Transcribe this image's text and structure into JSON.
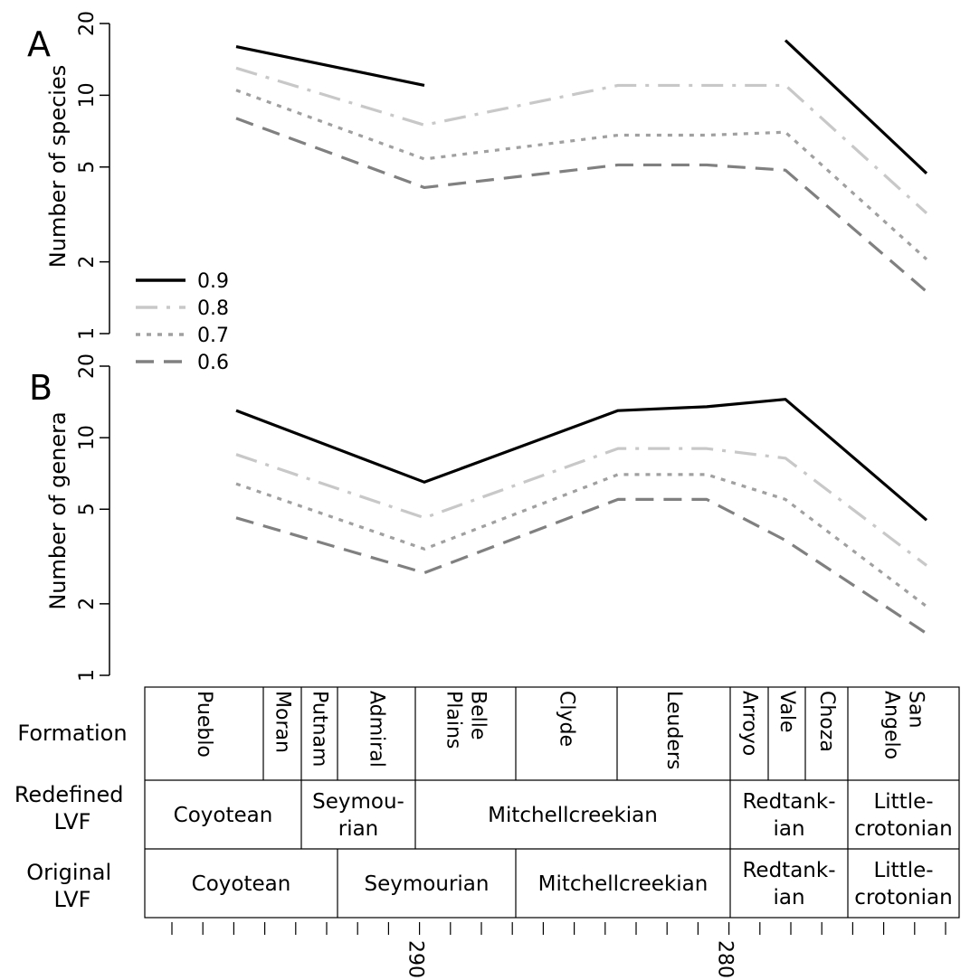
{
  "chart_data": [
    {
      "type": "line",
      "panel_label": "A",
      "ylabel": "Number of species",
      "yscale": "log",
      "ylim": [
        1,
        20
      ],
      "yticks": [
        1,
        2,
        5,
        10,
        20
      ],
      "x_stage": [
        "Coyotean",
        "Seymourian",
        "Mitchellcreekian",
        "Mitchellcreekian",
        "Redtankian",
        "Littlecrotonian"
      ],
      "series": [
        {
          "name": "0.9",
          "color": "#000000",
          "dash": "solid",
          "values": [
            16,
            11,
            null,
            null,
            17,
            4.7
          ]
        },
        {
          "name": "0.8",
          "color": "#c8c8c8",
          "dash": "dashdot",
          "values": [
            13,
            7.5,
            11,
            11,
            11,
            3.2
          ]
        },
        {
          "name": "0.7",
          "color": "#a0a0a0",
          "dash": "dotted",
          "values": [
            10.5,
            5.4,
            6.8,
            6.8,
            7,
            2.05
          ]
        },
        {
          "name": "0.6",
          "color": "#808080",
          "dash": "dashed",
          "values": [
            8,
            4.1,
            5.1,
            5.1,
            4.85,
            1.5
          ]
        }
      ]
    },
    {
      "type": "line",
      "panel_label": "B",
      "ylabel": "Number of genera",
      "yscale": "log",
      "ylim": [
        1,
        20
      ],
      "yticks": [
        1,
        2,
        5,
        10,
        20
      ],
      "x_stage": [
        "Coyotean",
        "Seymourian",
        "Mitchellcreekian",
        "Mitchellcreekian",
        "Redtankian",
        "Littlecrotonian"
      ],
      "series": [
        {
          "name": "0.9",
          "color": "#000000",
          "dash": "solid",
          "values": [
            13,
            6.5,
            13,
            13.5,
            14.5,
            4.5
          ]
        },
        {
          "name": "0.8",
          "color": "#c8c8c8",
          "dash": "dashdot",
          "values": [
            8.5,
            4.6,
            9,
            9,
            8.2,
            2.9
          ]
        },
        {
          "name": "0.7",
          "color": "#a0a0a0",
          "dash": "dotted",
          "values": [
            6.4,
            3.4,
            7,
            7,
            5.5,
            1.95
          ]
        },
        {
          "name": "0.6",
          "color": "#808080",
          "dash": "dashed",
          "values": [
            4.6,
            2.7,
            5.5,
            5.5,
            3.7,
            1.5
          ]
        }
      ]
    }
  ],
  "legend": {
    "position": "left",
    "entries": [
      "0.9",
      "0.8",
      "0.7",
      "0.6"
    ]
  },
  "stratigraphy": {
    "row_labels": {
      "formation": "Formation",
      "redefined": [
        "Redefined",
        "LVF"
      ],
      "original": [
        "Original",
        "LVF"
      ]
    },
    "formations": [
      [
        "Pueblo"
      ],
      [
        "Moran"
      ],
      [
        "Putnam"
      ],
      [
        "Admiral"
      ],
      [
        "Belle",
        "Plains"
      ],
      [
        "Clyde"
      ],
      [
        "Leuders"
      ],
      [
        "Arroyo"
      ],
      [
        "Vale"
      ],
      [
        "Choza"
      ],
      [
        "San",
        "Angelo"
      ]
    ],
    "redefined_lvf": [
      [
        "Coyotean"
      ],
      [
        "Seymou-",
        "rian"
      ],
      [
        "Mitchellcreekian"
      ],
      [
        "Redtank-",
        "ian"
      ],
      [
        "Little-",
        "crotonian"
      ]
    ],
    "original_lvf": [
      [
        "Coyotean"
      ],
      [
        "Seymourian"
      ],
      [
        "Mitchellcreekian"
      ],
      [
        "Redtank-",
        "ian"
      ],
      [
        "Little-",
        "crotonian"
      ]
    ]
  },
  "time_axis": {
    "tick_labels": [
      "290",
      "280"
    ]
  }
}
